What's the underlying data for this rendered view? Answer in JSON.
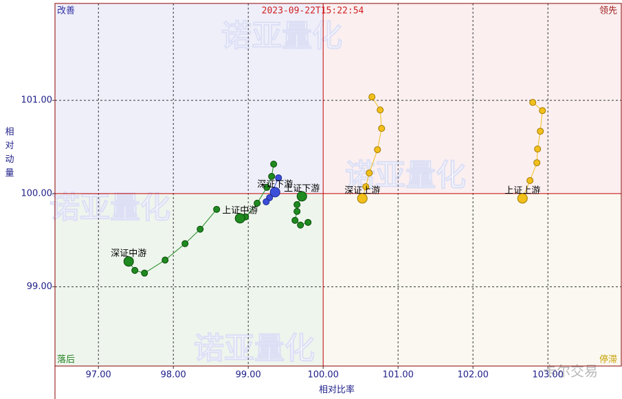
{
  "chart_data": {
    "type": "rrg",
    "timestamp": "2023-09-22T15:22:54",
    "xlabel": "相对比率",
    "ylabel": "相对动量",
    "xlim": [
      96.42,
      103.98
    ],
    "ylim": [
      98.15,
      102.04
    ],
    "xticks": [
      {
        "value": 97,
        "label": "97.00"
      },
      {
        "value": 98,
        "label": "98.00"
      },
      {
        "value": 99,
        "label": "99.00"
      },
      {
        "value": 100,
        "label": "100.00"
      },
      {
        "value": 101,
        "label": "101.00"
      },
      {
        "value": 102,
        "label": "102.00"
      },
      {
        "value": 103,
        "label": "103.00"
      }
    ],
    "yticks": [
      {
        "value": 99,
        "label": "99.00"
      },
      {
        "value": 100,
        "label": "100.00"
      },
      {
        "value": 101,
        "label": "101.00"
      }
    ],
    "grid": true,
    "center": [
      100,
      100
    ],
    "quadrants": {
      "top_left": "改善",
      "top_right": "领先",
      "bottom_left": "落后",
      "bottom_right": "停滞"
    },
    "watermarks": [
      "诺亚量化",
      "卡尔交易"
    ],
    "series": [
      {
        "name": "深证中游",
        "color": "#1f8a1f",
        "x": [
          98.578,
          98.358,
          98.156,
          97.89,
          97.615,
          97.486,
          97.404
        ],
        "values": [
          99.831,
          99.618,
          99.463,
          99.287,
          99.147,
          99.176,
          99.272
        ]
      },
      {
        "name": "上证中游",
        "color": "#1f8a1f",
        "x": [
          99.339,
          99.312,
          99.248,
          99.119,
          98.963,
          98.89
        ],
        "values": [
          100.316,
          100.184,
          100.066,
          99.897,
          99.75,
          99.735
        ]
      },
      {
        "name": "上证下游",
        "color": "#1f8a1f",
        "x": [
          99.798,
          99.697,
          99.624,
          99.651,
          99.651,
          99.716
        ],
        "values": [
          99.691,
          99.662,
          99.713,
          99.809,
          99.882,
          99.971
        ]
      },
      {
        "name": "深证下游",
        "color": "#3c4fd8",
        "x": [
          99.404,
          99.284,
          99.239,
          99.358
        ],
        "values": [
          100.169,
          99.956,
          99.912,
          100.015
        ]
      },
      {
        "name": "深证上游",
        "color": "#f2c01a",
        "x": [
          100.651,
          100.761,
          100.78,
          100.725,
          100.615,
          100.569,
          100.523
        ],
        "values": [
          101.037,
          100.897,
          100.699,
          100.471,
          100.221,
          100.074,
          99.949
        ]
      },
      {
        "name": "上证上游",
        "color": "#f2c01a",
        "x": [
          102.798,
          102.927,
          102.899,
          102.862,
          102.853,
          102.761,
          102.661
        ],
        "values": [
          100.978,
          100.89,
          100.669,
          100.478,
          100.331,
          100.14,
          99.949
        ]
      }
    ]
  }
}
